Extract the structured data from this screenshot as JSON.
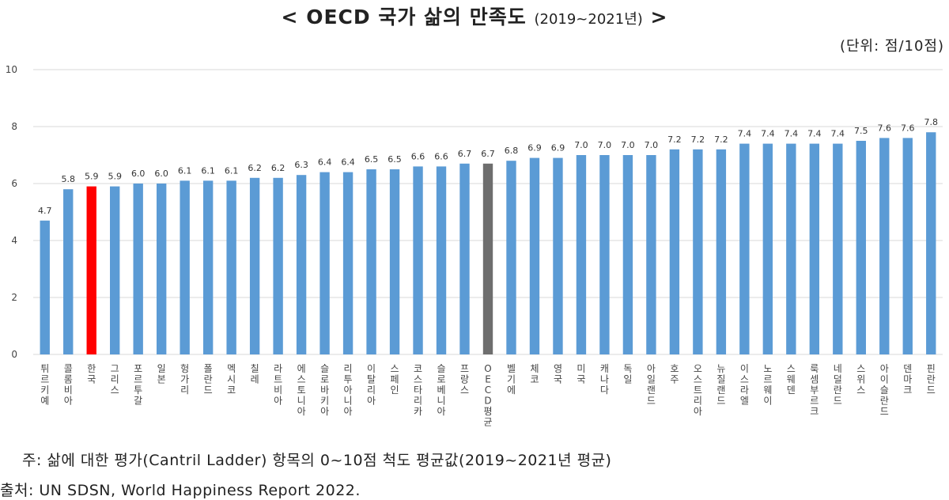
{
  "header": {
    "title_open": "<",
    "title_main": "OECD 국가 삶의 만족도",
    "title_period": "(2019~2021년)",
    "title_close": ">",
    "unit": "(단위: 점/10점)"
  },
  "footer": {
    "note": "주: 삶에 대한 평가(Cantril Ladder) 항목의 0~10점 척도 평균값(2019~2021년 평균)",
    "source": "출처: UN SDSN, World Happiness Report 2022."
  },
  "colors": {
    "default_bar": "#5b9bd5",
    "korea_bar": "#ff0000",
    "oecd_avg_bar": "#6e6e6e",
    "grid": "#d9d9d9"
  },
  "chart_data": {
    "type": "bar",
    "title": "OECD 국가 삶의 만족도 (2019~2021년)",
    "ylabel": "",
    "xlabel": "",
    "ylim": [
      0,
      10
    ],
    "yticks": [
      0,
      2,
      4,
      6,
      8,
      10
    ],
    "grid": true,
    "categories": [
      "튀르키예",
      "콜롬비아",
      "한국",
      "그리스",
      "포르투갈",
      "일본",
      "헝가리",
      "폴란드",
      "멕시코",
      "칠레",
      "라트비아",
      "에스토니아",
      "슬로바키아",
      "리투아니아",
      "이탈리아",
      "스페인",
      "코스타리카",
      "슬로베니아",
      "프랑스",
      "OECD평균",
      "벨기에",
      "체코",
      "영국",
      "미국",
      "캐나다",
      "독일",
      "아일랜드",
      "호주",
      "오스트리아",
      "뉴질랜드",
      "이스라엘",
      "노르웨이",
      "스웨덴",
      "룩셈부르크",
      "네덜란드",
      "스위스",
      "아이슬란드",
      "덴마크",
      "핀란드"
    ],
    "values": [
      4.7,
      5.8,
      5.9,
      5.9,
      6.0,
      6.0,
      6.1,
      6.1,
      6.1,
      6.2,
      6.2,
      6.3,
      6.4,
      6.4,
      6.5,
      6.5,
      6.6,
      6.6,
      6.7,
      6.7,
      6.8,
      6.9,
      6.9,
      7.0,
      7.0,
      7.0,
      7.0,
      7.2,
      7.2,
      7.2,
      7.4,
      7.4,
      7.4,
      7.4,
      7.4,
      7.5,
      7.6,
      7.6,
      7.8
    ],
    "highlight": {
      "한국": "korea_bar",
      "OECD평균": "oecd_avg_bar"
    }
  }
}
